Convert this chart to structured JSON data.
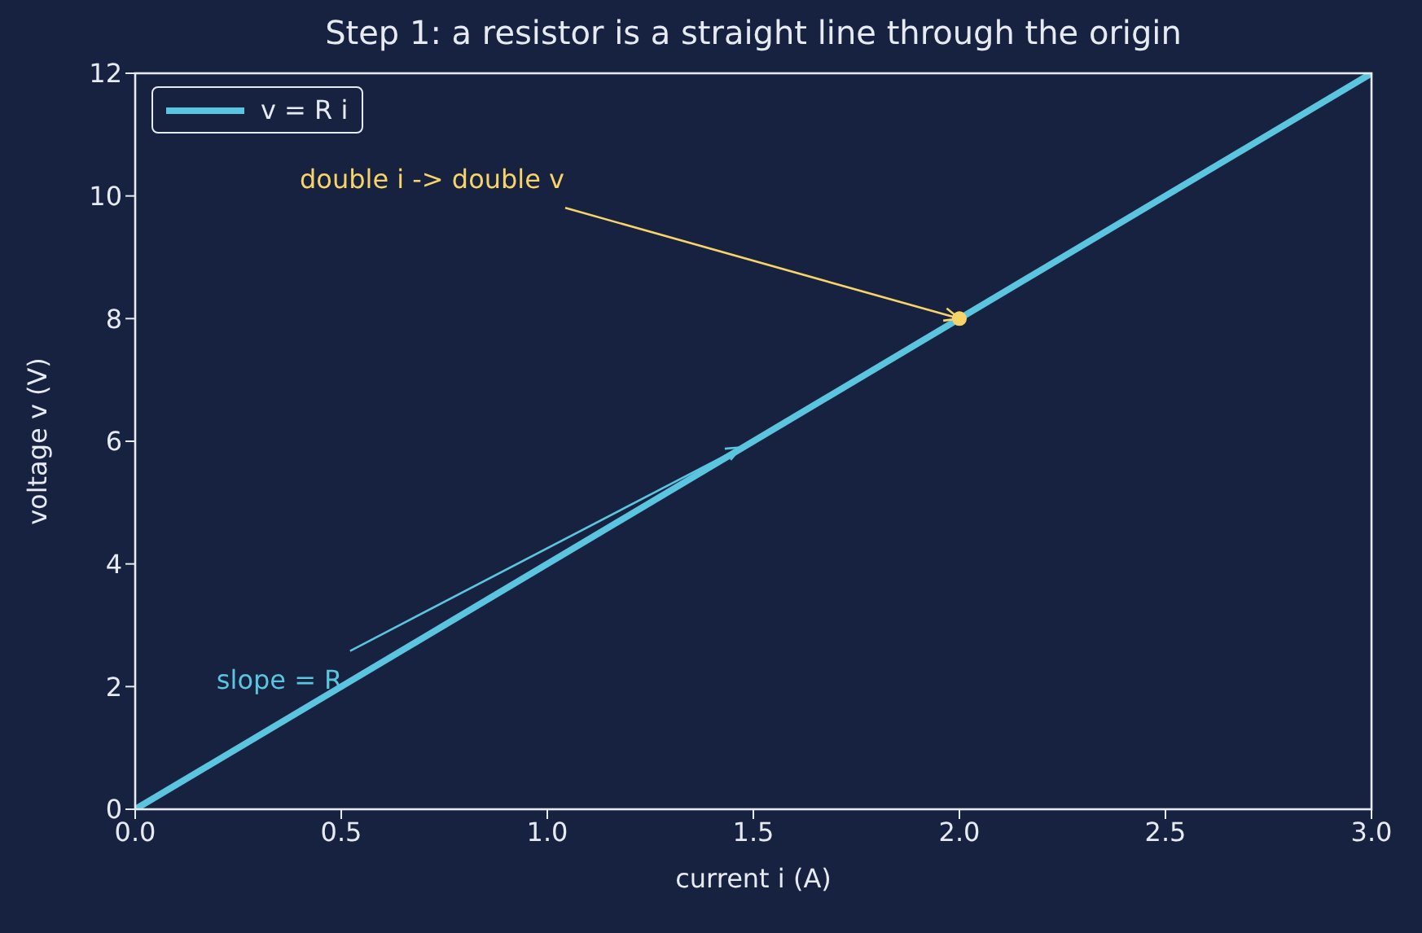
{
  "chart_data": {
    "type": "line",
    "title": "Step 1: a resistor is a straight line through the origin",
    "xlabel": "current i  (A)",
    "ylabel": "voltage v  (V)",
    "xlim": [
      0,
      3
    ],
    "xticks": [
      {
        "value": 0,
        "label": "0.0"
      },
      {
        "value": 0.5,
        "label": "0.5"
      },
      {
        "value": 1,
        "label": "1.0"
      },
      {
        "value": 1.5,
        "label": "1.5"
      },
      {
        "value": 2,
        "label": "2.0"
      },
      {
        "value": 2.5,
        "label": "2.5"
      },
      {
        "value": 3,
        "label": "3.0"
      }
    ],
    "ylim": [
      0,
      12
    ],
    "yticks": [
      0,
      2,
      4,
      6,
      8,
      10,
      12
    ],
    "legend": "top left",
    "series": [
      {
        "name": "v = R i",
        "color": "#5bc4de",
        "x": [
          0,
          3
        ],
        "values": [
          0,
          12
        ],
        "marker": "none",
        "line_style": "solid"
      },
      {
        "type": "scatter",
        "color": "#f7d46a",
        "x": [
          2
        ],
        "values": [
          8
        ],
        "marker": "circle"
      }
    ],
    "annotations": [
      {
        "text": "double i -> double v",
        "x": 2,
        "y": 8
      },
      {
        "text": "slope = R",
        "x": 1.47,
        "y": 5.9
      }
    ]
  }
}
